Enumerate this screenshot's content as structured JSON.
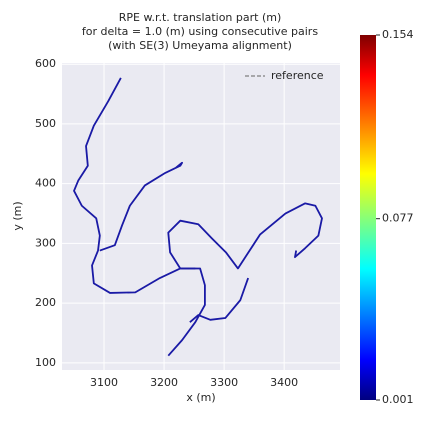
{
  "chart_data": {
    "type": "line",
    "title": [
      "RPE w.r.t. translation part (m)",
      "for delta = 1.0 (m) using consecutive pairs",
      "(with SE(3) Umeyama alignment)"
    ],
    "xlabel": "x (m)",
    "ylabel": "y (m)",
    "x": [
      3128,
      3107,
      3083,
      3070,
      3073,
      3057,
      3050,
      3063,
      3087,
      3093,
      3090,
      3080,
      3083,
      3110,
      3152,
      3193,
      3227,
      3260,
      3268,
      3268,
      3252,
      3230,
      3207,
      null,
      3252,
      3227,
      3210,
      3207,
      3227,
      3257,
      3280,
      3303,
      3323,
      3360,
      3402,
      3435,
      3452,
      3463,
      3457,
      3435,
      3418,
      3420,
      null,
      3340,
      3327,
      3302,
      3277,
      3257,
      3243,
      null,
      3093,
      3118,
      3130,
      3143,
      3168,
      3202,
      3227,
      3230,
      3220
    ],
    "series": [
      {
        "name": "reference",
        "color": "#7f7f7f",
        "dashed": true,
        "values": [
          577,
          538,
          497,
          463,
          430,
          405,
          388,
          363,
          342,
          313,
          288,
          263,
          233,
          217,
          218,
          242,
          258,
          258,
          230,
          197,
          168,
          138,
          112,
          null,
          258,
          258,
          285,
          318,
          338,
          332,
          308,
          285,
          258,
          315,
          350,
          367,
          363,
          342,
          313,
          292,
          277,
          288,
          null,
          242,
          205,
          175,
          172,
          180,
          168,
          null,
          288,
          297,
          330,
          363,
          397,
          418,
          430,
          435,
          427
        ]
      },
      {
        "color": "#1a1aa6",
        "dashed": false,
        "values": [
          577,
          538,
          497,
          463,
          430,
          405,
          388,
          363,
          342,
          313,
          288,
          263,
          233,
          217,
          218,
          242,
          258,
          258,
          230,
          197,
          168,
          138,
          112,
          null,
          258,
          258,
          285,
          318,
          338,
          332,
          308,
          285,
          258,
          315,
          350,
          367,
          363,
          342,
          313,
          292,
          277,
          288,
          null,
          242,
          205,
          175,
          172,
          180,
          168,
          null,
          288,
          297,
          330,
          363,
          397,
          418,
          430,
          435,
          427
        ]
      }
    ],
    "xlim": [
      3030,
      3493
    ],
    "xticks": [
      3100,
      3200,
      3300,
      3400
    ],
    "ylim": [
      88,
      602
    ],
    "yticks": [
      100,
      200,
      300,
      400,
      500,
      600
    ],
    "grid": true,
    "legend": "upper right",
    "colorbar": {
      "colormap": "jet",
      "clim": [
        0.001,
        0.154
      ],
      "ticks": [
        0.001,
        0.077,
        0.154
      ]
    }
  }
}
